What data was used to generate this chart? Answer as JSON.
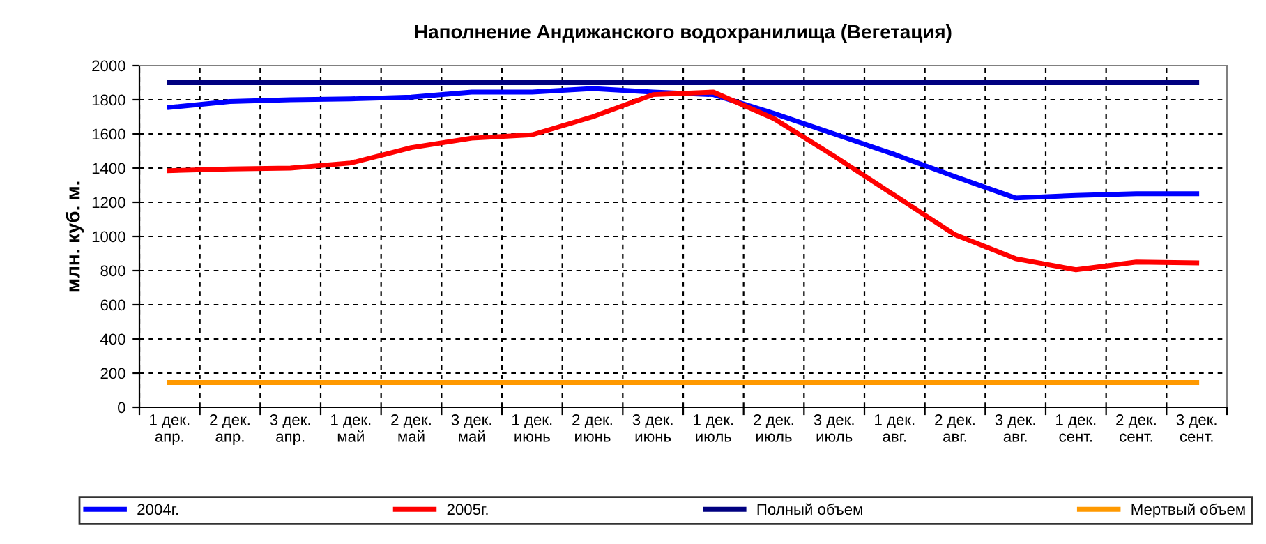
{
  "chart_data": {
    "type": "line",
    "title": "Наполнение Андижанского водохранилища (Вегетация)",
    "ylabel": "млн. куб. м.",
    "categories": [
      "1 дек.\nапр.",
      "2 дек.\nапр.",
      "3 дек.\nапр.",
      "1 дек.\nмай",
      "2 дек.\nмай",
      "3 дек.\nмай",
      "1 дек.\nиюнь",
      "2 дек.\nиюнь",
      "3 дек.\nиюнь",
      "1 дек.\nиюль",
      "2 дек.\nиюль",
      "3 дек.\nиюль",
      "1 дек.\nавг.",
      "2 дек.\nавг.",
      "3 дек.\nавг.",
      "1 дек.\nсент.",
      "2 дек.\nсент.",
      "3 дек.\nсент."
    ],
    "series": [
      {
        "name": "2004г.",
        "color": "#0000ff",
        "values": [
          1755,
          1790,
          1800,
          1805,
          1815,
          1845,
          1845,
          1865,
          1845,
          1830,
          1720,
          1600,
          1480,
          1350,
          1225,
          1240,
          1250,
          1250
        ]
      },
      {
        "name": "2005г.",
        "color": "#ff0000",
        "values": [
          1385,
          1395,
          1400,
          1430,
          1520,
          1575,
          1595,
          1700,
          1830,
          1845,
          1690,
          1470,
          1240,
          1010,
          870,
          805,
          850,
          845
        ]
      },
      {
        "name": "Полный объем",
        "color": "#000080",
        "values": [
          1900,
          1900,
          1900,
          1900,
          1900,
          1900,
          1900,
          1900,
          1900,
          1900,
          1900,
          1900,
          1900,
          1900,
          1900,
          1900,
          1900,
          1900
        ]
      },
      {
        "name": "Мертвый объем",
        "color": "#ff9900",
        "values": [
          145,
          145,
          145,
          145,
          145,
          145,
          145,
          145,
          145,
          145,
          145,
          145,
          145,
          145,
          145,
          145,
          145,
          145
        ]
      }
    ],
    "ylim": [
      0,
      2000
    ],
    "yticks": [
      0,
      200,
      400,
      600,
      800,
      1000,
      1200,
      1400,
      1600,
      1800,
      2000
    ],
    "grid": true,
    "legend": "bottom",
    "marker": "none",
    "line_style": "solid"
  }
}
